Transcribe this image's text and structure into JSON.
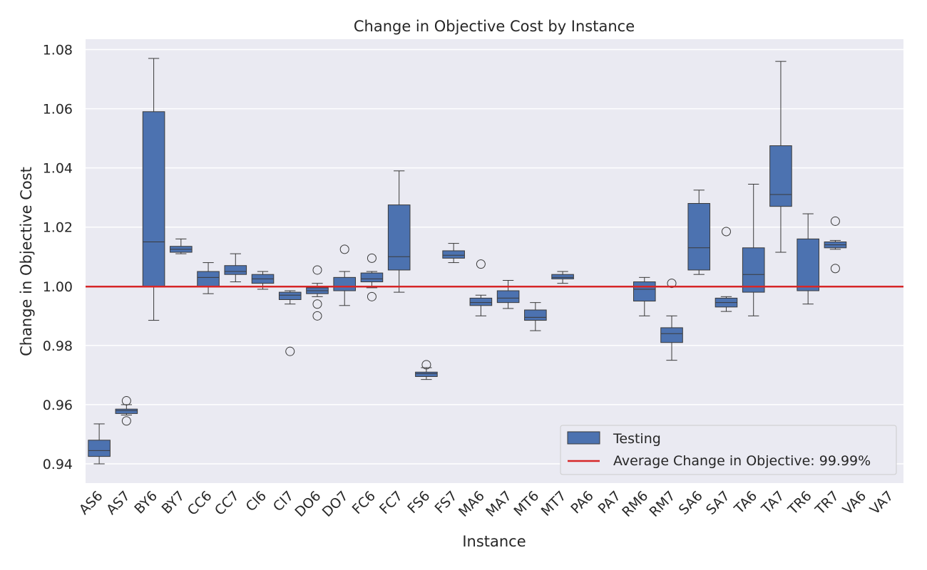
{
  "chart_data": {
    "type": "box",
    "title": "Change in Objective Cost by Instance",
    "xlabel": "Instance",
    "ylabel": "Change in Objective Cost",
    "ylim": [
      0.9335,
      1.0835
    ],
    "yticks": [
      0.94,
      0.96,
      0.98,
      1.0,
      1.02,
      1.04,
      1.06,
      1.08
    ],
    "ytick_labels": [
      "0.94",
      "0.96",
      "0.98",
      "1.00",
      "1.02",
      "1.04",
      "1.06",
      "1.08"
    ],
    "grid": true,
    "legend_position": "lower-right",
    "colors": {
      "box_fill": "#4c72b0",
      "box_edge": "#3a3a3a",
      "reference_line": "#d62728",
      "plot_background": "#eaeaf2",
      "grid": "#ffffff"
    },
    "series": [
      {
        "name": "Testing",
        "boxes": [
          {
            "label": "AS6",
            "whislo": 0.94,
            "q1": 0.9425,
            "med": 0.9445,
            "q3": 0.948,
            "whishi": 0.9535,
            "fliers": []
          },
          {
            "label": "AS7",
            "whislo": 0.9565,
            "q1": 0.957,
            "med": 0.958,
            "q3": 0.9585,
            "whishi": 0.96,
            "fliers": [
              0.9545,
              0.9613
            ]
          },
          {
            "label": "BY6",
            "whislo": 0.9885,
            "q1": 1.0,
            "med": 1.015,
            "q3": 1.059,
            "whishi": 1.077,
            "fliers": []
          },
          {
            "label": "BY7",
            "whislo": 1.011,
            "q1": 1.0115,
            "med": 1.0125,
            "q3": 1.0135,
            "whishi": 1.016,
            "fliers": []
          },
          {
            "label": "CC6",
            "whislo": 0.9975,
            "q1": 1.0,
            "med": 1.003,
            "q3": 1.005,
            "whishi": 1.008,
            "fliers": []
          },
          {
            "label": "CC7",
            "whislo": 1.0015,
            "q1": 1.004,
            "med": 1.005,
            "q3": 1.007,
            "whishi": 1.011,
            "fliers": []
          },
          {
            "label": "CI6",
            "whislo": 0.999,
            "q1": 1.001,
            "med": 1.0025,
            "q3": 1.004,
            "whishi": 1.005,
            "fliers": []
          },
          {
            "label": "CI7",
            "whislo": 0.994,
            "q1": 0.9955,
            "med": 0.997,
            "q3": 0.998,
            "whishi": 0.9985,
            "fliers": [
              0.978
            ]
          },
          {
            "label": "DO6",
            "whislo": 0.9965,
            "q1": 0.9975,
            "med": 0.9985,
            "q3": 0.9995,
            "whishi": 1.001,
            "fliers": [
              1.0055,
              0.994,
              0.99
            ]
          },
          {
            "label": "DO7",
            "whislo": 0.9935,
            "q1": 0.9985,
            "med": 1.0,
            "q3": 1.003,
            "whishi": 1.005,
            "fliers": [
              1.0125
            ]
          },
          {
            "label": "FC6",
            "whislo": 0.9995,
            "q1": 1.0015,
            "med": 1.0025,
            "q3": 1.0045,
            "whishi": 1.005,
            "fliers": [
              1.0095,
              0.9965
            ]
          },
          {
            "label": "FC7",
            "whislo": 0.998,
            "q1": 1.0055,
            "med": 1.01,
            "q3": 1.0275,
            "whishi": 1.039,
            "fliers": []
          },
          {
            "label": "FS6",
            "whislo": 0.9685,
            "q1": 0.9695,
            "med": 0.9705,
            "q3": 0.971,
            "whishi": 0.9725,
            "fliers": [
              0.9735
            ]
          },
          {
            "label": "FS7",
            "whislo": 1.008,
            "q1": 1.0095,
            "med": 1.0105,
            "q3": 1.012,
            "whishi": 1.0145,
            "fliers": []
          },
          {
            "label": "MA6",
            "whislo": 0.99,
            "q1": 0.9935,
            "med": 0.9945,
            "q3": 0.996,
            "whishi": 0.997,
            "fliers": [
              1.0075
            ]
          },
          {
            "label": "MA7",
            "whislo": 0.9925,
            "q1": 0.9945,
            "med": 0.996,
            "q3": 0.9985,
            "whishi": 1.002,
            "fliers": []
          },
          {
            "label": "MT6",
            "whislo": 0.985,
            "q1": 0.9885,
            "med": 0.9895,
            "q3": 0.992,
            "whishi": 0.9945,
            "fliers": []
          },
          {
            "label": "MT7",
            "whislo": 1.001,
            "q1": 1.0025,
            "med": 1.003,
            "q3": 1.004,
            "whishi": 1.005,
            "fliers": []
          },
          {
            "label": "PA6",
            "whislo": 1.0,
            "q1": 1.0,
            "med": 1.0,
            "q3": 1.0,
            "whishi": 1.0,
            "fliers": []
          },
          {
            "label": "PA7",
            "whislo": 1.0,
            "q1": 1.0,
            "med": 1.0,
            "q3": 1.0,
            "whishi": 1.0,
            "fliers": []
          },
          {
            "label": "RM6",
            "whislo": 0.99,
            "q1": 0.995,
            "med": 0.999,
            "q3": 1.0015,
            "whishi": 1.003,
            "fliers": []
          },
          {
            "label": "RM7",
            "whislo": 0.975,
            "q1": 0.981,
            "med": 0.984,
            "q3": 0.986,
            "whishi": 0.99,
            "fliers": [
              1.001
            ]
          },
          {
            "label": "SA6",
            "whislo": 1.004,
            "q1": 1.0055,
            "med": 1.013,
            "q3": 1.028,
            "whishi": 1.0325,
            "fliers": []
          },
          {
            "label": "SA7",
            "whislo": 0.9915,
            "q1": 0.993,
            "med": 0.9945,
            "q3": 0.996,
            "whishi": 0.9965,
            "fliers": [
              1.0185
            ]
          },
          {
            "label": "TA6",
            "whislo": 0.99,
            "q1": 0.998,
            "med": 1.004,
            "q3": 1.013,
            "whishi": 1.0345,
            "fliers": []
          },
          {
            "label": "TA7",
            "whislo": 1.0115,
            "q1": 1.027,
            "med": 1.031,
            "q3": 1.0475,
            "whishi": 1.076,
            "fliers": []
          },
          {
            "label": "TR6",
            "whislo": 0.994,
            "q1": 0.9985,
            "med": 1.0,
            "q3": 1.016,
            "whishi": 1.0245,
            "fliers": []
          },
          {
            "label": "TR7",
            "whislo": 1.0125,
            "q1": 1.013,
            "med": 1.014,
            "q3": 1.015,
            "whishi": 1.0155,
            "fliers": [
              1.022,
              1.006
            ]
          },
          {
            "label": "VA6",
            "whislo": 1.0,
            "q1": 1.0,
            "med": 1.0,
            "q3": 1.0,
            "whishi": 1.0,
            "fliers": []
          },
          {
            "label": "VA7",
            "whislo": 1.0,
            "q1": 1.0,
            "med": 1.0,
            "q3": 1.0,
            "whishi": 1.0,
            "fliers": []
          }
        ]
      }
    ],
    "reference_line": {
      "name": "Average Change in Objective: 99.99%",
      "y": 0.9999
    },
    "legend": [
      "Testing",
      "Average Change in Objective: 99.99%"
    ]
  }
}
